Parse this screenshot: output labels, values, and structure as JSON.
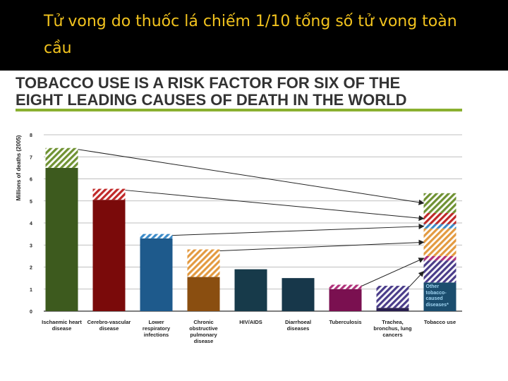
{
  "header": {
    "title": "Tử vong do thuốc lá chiếm 1/10 tổng số tử vong toàn cầu"
  },
  "chart_data": {
    "type": "stacked_bar",
    "title_lines": [
      "TOBACCO USE IS A RISK FACTOR FOR SIX OF THE",
      "EIGHT LEADING CAUSES OF DEATH IN THE WORLD"
    ],
    "y_label": "Millions of deaths (2005)",
    "categories": [
      "Ischaemic heart disease",
      "Cerebro-vascular disease",
      "Lower respiratory infections",
      "Chronic obstructive pulmonary disease",
      "HIV/AIDS",
      "Diarrhoeal diseases",
      "Tuberculosis",
      "Trachea, bronchus, lung cancers",
      "Tobacco use"
    ],
    "ylim": [
      0,
      8
    ],
    "yticks": [
      0,
      1,
      2,
      3,
      4,
      5,
      6,
      7,
      8
    ],
    "grid": true,
    "series": [
      {
        "colors": [
          "#3d5a1e",
          "#7a0a0a",
          "#1e5a8c",
          "#8a4e10",
          "#173a4a",
          "#17374a",
          "#7a1050",
          "#2a2050",
          null
        ],
        "values": [
          6.5,
          5.05,
          3.3,
          1.55,
          1.9,
          1.5,
          1.0,
          0.15,
          null
        ]
      },
      {
        "pattern": "hatched",
        "colors": [
          "#6f9232",
          "#c02828",
          "#3a8ac8",
          "#e39a40",
          null,
          null,
          "#b0307a",
          "#4a3c8a",
          null
        ],
        "values": [
          0.9,
          0.5,
          0.2,
          1.25,
          null,
          null,
          0.2,
          1.0,
          null
        ]
      }
    ],
    "tobacco_other": {
      "label": "Other tobacco-caused diseases*",
      "value": 1.3,
      "color": "#1b4d6e"
    }
  }
}
